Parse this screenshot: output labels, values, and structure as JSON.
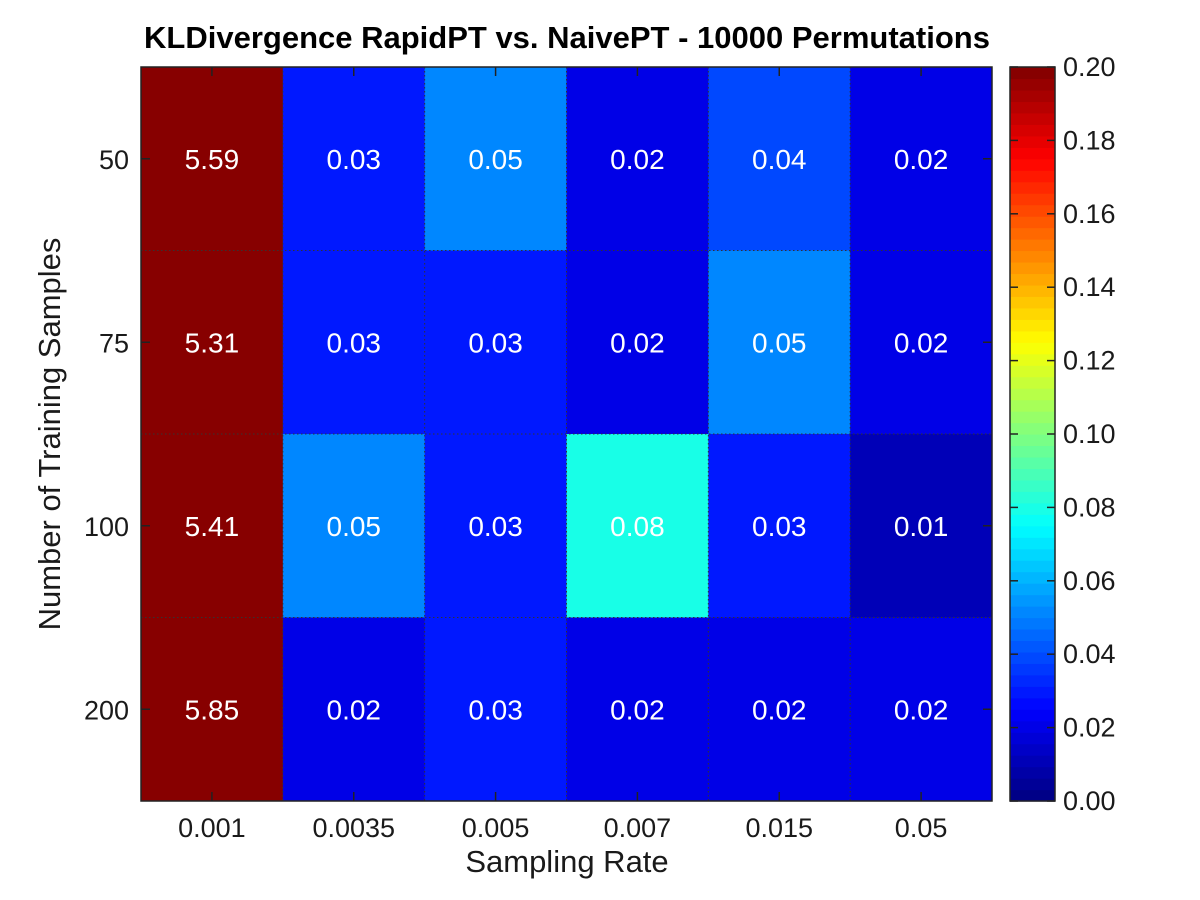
{
  "chart_data": {
    "type": "heatmap",
    "title": "KLDivergence RapidPT vs. NaivePT - 10000 Permutations",
    "xlabel": "Sampling Rate",
    "ylabel": "Number of Training Samples",
    "x_categories": [
      "0.001",
      "0.0035",
      "0.005",
      "0.007",
      "0.015",
      "0.05"
    ],
    "y_categories": [
      "50",
      "75",
      "100",
      "200"
    ],
    "values": [
      [
        5.59,
        0.03,
        0.05,
        0.02,
        0.04,
        0.02
      ],
      [
        5.31,
        0.03,
        0.03,
        0.02,
        0.05,
        0.02
      ],
      [
        5.41,
        0.05,
        0.03,
        0.08,
        0.03,
        0.01
      ],
      [
        5.85,
        0.02,
        0.03,
        0.02,
        0.02,
        0.02
      ]
    ],
    "cell_labels": [
      [
        "5.59",
        "0.03",
        "0.05",
        "0.02",
        "0.04",
        "0.02"
      ],
      [
        "5.31",
        "0.03",
        "0.03",
        "0.02",
        "0.05",
        "0.02"
      ],
      [
        "5.41",
        "0.05",
        "0.03",
        "0.08",
        "0.03",
        "0.01"
      ],
      [
        "5.85",
        "0.02",
        "0.03",
        "0.02",
        "0.02",
        "0.02"
      ]
    ],
    "colormap": "jet",
    "color_range": [
      0,
      0.2
    ],
    "colorbar_ticks": [
      "0.00",
      "0.02",
      "0.04",
      "0.06",
      "0.08",
      "0.10",
      "0.12",
      "0.14",
      "0.16",
      "0.18",
      "0.20"
    ],
    "grid": true,
    "colorbar_position": "right"
  }
}
